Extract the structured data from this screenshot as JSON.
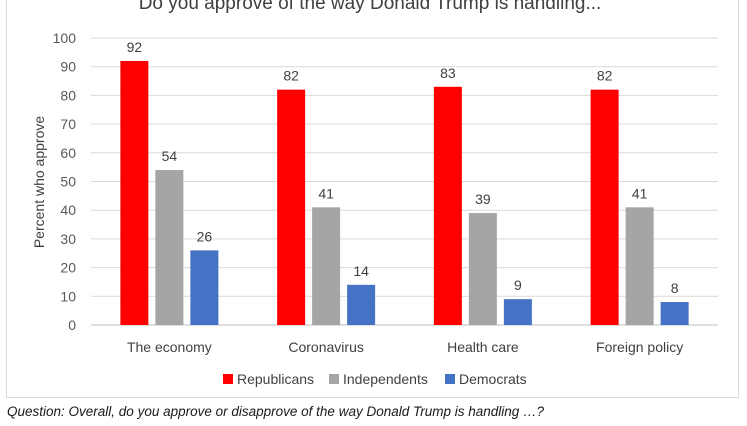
{
  "chart_data": {
    "type": "bar",
    "title": "Do you approve of the way Donald Trump is handling...",
    "ylabel": "Percent who approve",
    "xlabel": "",
    "ylim": [
      0,
      100
    ],
    "yticks": [
      0,
      10,
      20,
      30,
      40,
      50,
      60,
      70,
      80,
      90,
      100
    ],
    "grid": true,
    "legend_position": "bottom",
    "categories": [
      "The economy",
      "Coronavirus",
      "Health care",
      "Foreign policy"
    ],
    "series": [
      {
        "name": "Republicans",
        "color": "#ff0000",
        "values": [
          92,
          82,
          83,
          82
        ]
      },
      {
        "name": "Independents",
        "color": "#a5a5a5",
        "values": [
          54,
          41,
          39,
          41
        ]
      },
      {
        "name": "Democrats",
        "color": "#4472c4",
        "values": [
          26,
          14,
          9,
          8
        ]
      }
    ]
  },
  "caption": "Question: Overall, do you approve or disapprove of the way Donald Trump is handling …?"
}
